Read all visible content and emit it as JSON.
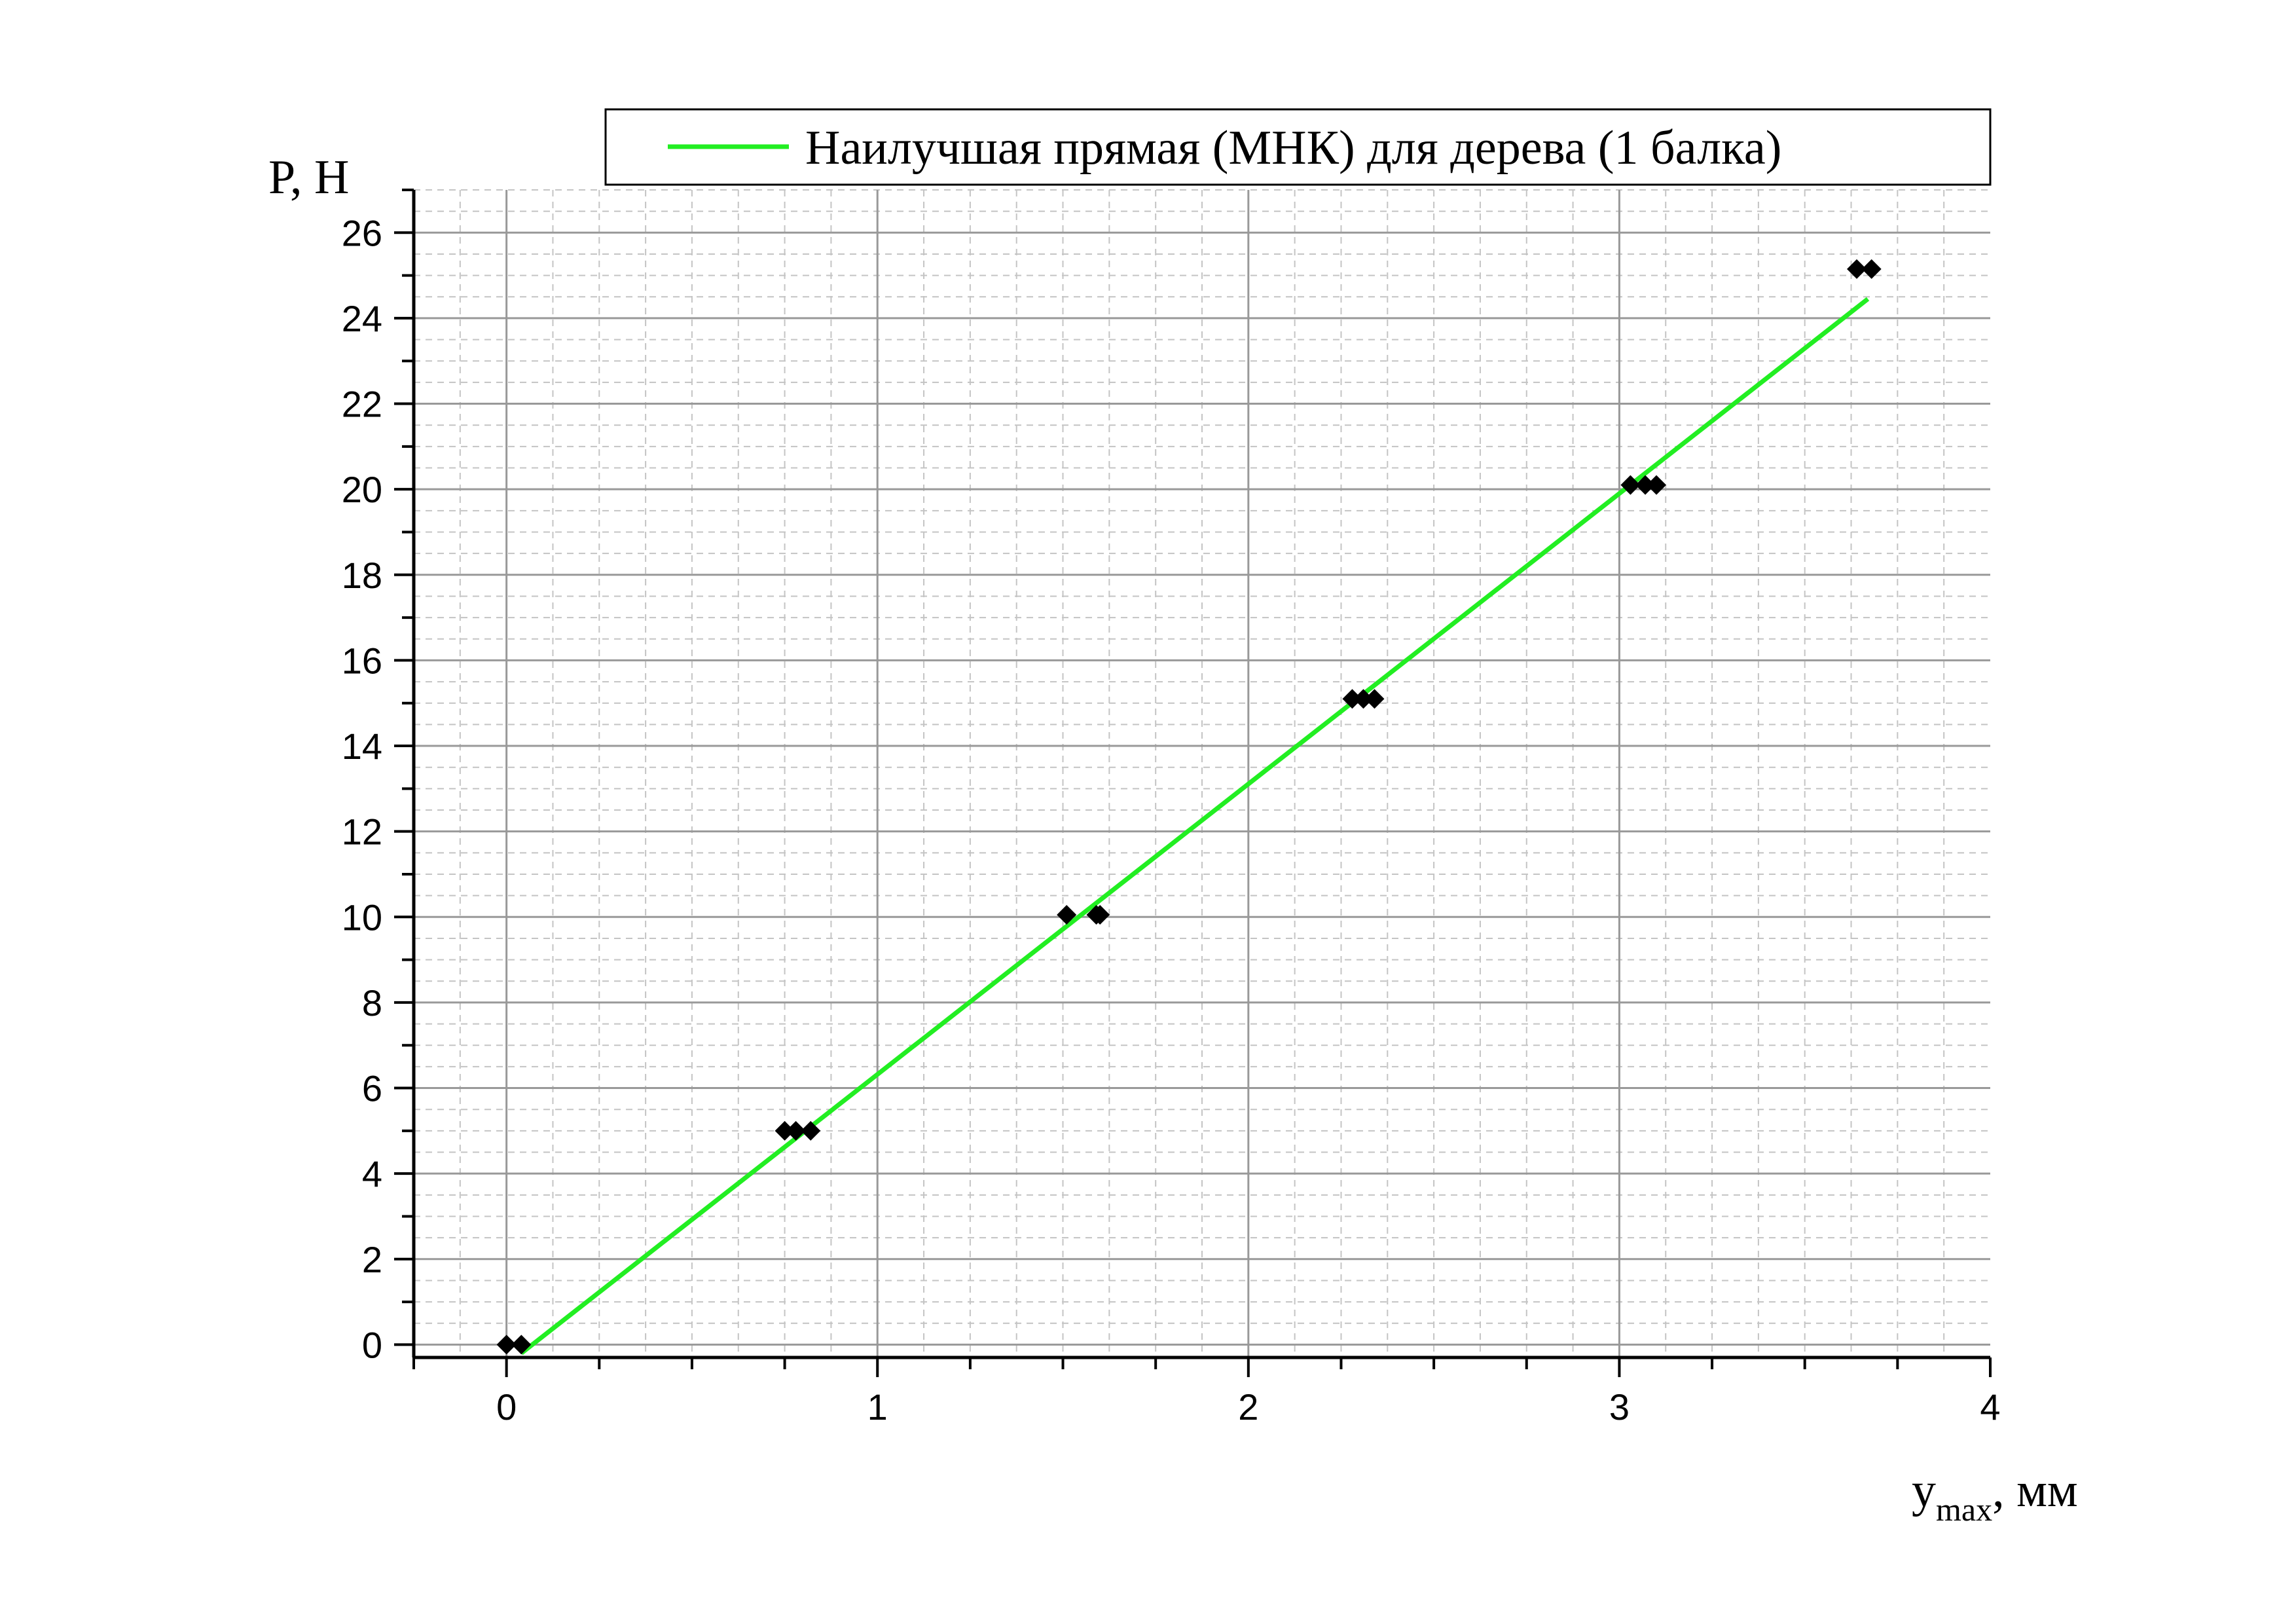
{
  "chart_data": {
    "type": "scatter",
    "title": "",
    "xlabel": {
      "main": "y",
      "sub": "max",
      "suffix": ", мм"
    },
    "ylabel": "P, Н",
    "xlim": [
      -0.25,
      4
    ],
    "ylim": [
      -0.3,
      27
    ],
    "xticks": [
      0,
      1,
      2,
      3,
      4
    ],
    "xtick_labels": [
      "0",
      "1",
      "2",
      "3",
      "4"
    ],
    "yticks": [
      0,
      2,
      4,
      6,
      8,
      10,
      12,
      14,
      16,
      18,
      20,
      22,
      24,
      26
    ],
    "ytick_labels": [
      "0",
      "2",
      "4",
      "6",
      "8",
      "10",
      "12",
      "14",
      "16",
      "18",
      "20",
      "22",
      "24",
      "26"
    ],
    "grid": true,
    "legend_position": "top-right",
    "series": [
      {
        "kind": "scatter",
        "color": "#000000",
        "marker": "diamond",
        "points": [
          [
            0.0,
            0.0
          ],
          [
            0.04,
            0.0
          ],
          [
            0.75,
            5.0
          ],
          [
            0.78,
            5.0
          ],
          [
            0.82,
            5.0
          ],
          [
            1.51,
            10.05
          ],
          [
            1.59,
            10.05
          ],
          [
            1.6,
            10.05
          ],
          [
            2.28,
            15.1
          ],
          [
            2.31,
            15.1
          ],
          [
            2.34,
            15.1
          ],
          [
            3.03,
            20.1
          ],
          [
            3.07,
            20.1
          ],
          [
            3.1,
            20.1
          ],
          [
            3.64,
            25.15
          ],
          [
            3.68,
            25.15
          ]
        ]
      },
      {
        "kind": "line",
        "name": "Наилучшая прямая (МНК) для дерева (1 балка)",
        "color": "#22ee22",
        "points": [
          [
            0.04,
            -0.2
          ],
          [
            3.67,
            24.45
          ]
        ]
      }
    ]
  }
}
